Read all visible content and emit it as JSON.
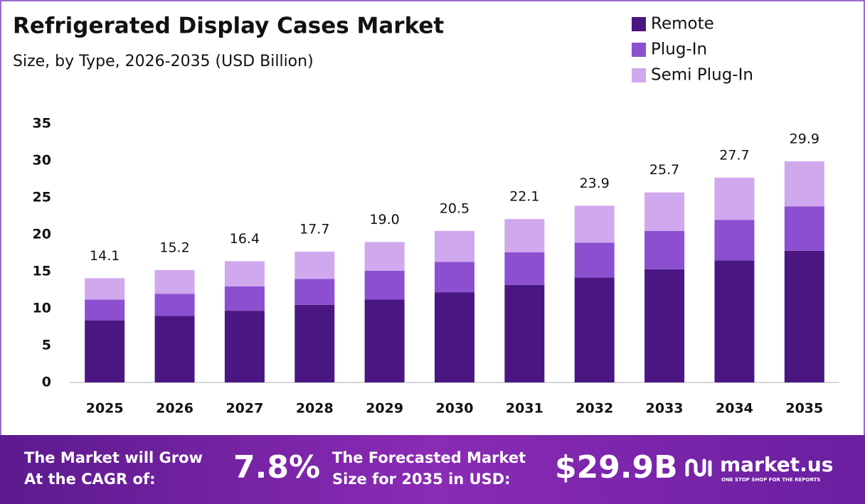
{
  "chart_data": {
    "type": "stacked-bar",
    "title": "Refrigerated Display Cases Market",
    "subtitle": "Size, by Type, 2026-2035 (USD Billion)",
    "categories": [
      "2025",
      "2026",
      "2027",
      "2028",
      "2029",
      "2030",
      "2031",
      "2032",
      "2033",
      "2034",
      "2035"
    ],
    "series": [
      {
        "name": "Remote",
        "color": "#4a1782",
        "values": [
          8.4,
          9.0,
          9.7,
          10.5,
          11.2,
          12.2,
          13.2,
          14.2,
          15.3,
          16.5,
          17.8
        ]
      },
      {
        "name": "Plug-In",
        "color": "#8b4fd0",
        "values": [
          2.8,
          3.0,
          3.3,
          3.5,
          3.9,
          4.1,
          4.4,
          4.7,
          5.2,
          5.5,
          6.0
        ]
      },
      {
        "name": "Semi Plug-In",
        "color": "#d0a8ee",
        "values": [
          2.9,
          3.2,
          3.4,
          3.7,
          3.9,
          4.2,
          4.5,
          5.0,
          5.2,
          5.7,
          6.1
        ]
      }
    ],
    "totals": [
      14.1,
      15.2,
      16.4,
      17.7,
      19.0,
      20.5,
      22.1,
      23.9,
      25.7,
      27.7,
      29.9
    ],
    "value_labels": [
      "14.1",
      "15.2",
      "16.4",
      "17.7",
      "19.0",
      "20.5",
      "22.1",
      "23.9",
      "25.7",
      "27.7",
      "29.9"
    ],
    "ylim": [
      0,
      35
    ],
    "yticks": [
      0,
      5,
      10,
      15,
      20,
      25,
      30,
      35
    ],
    "legend": "top-right"
  },
  "footer": {
    "cagr_text": [
      "The Market will Grow",
      "At the CAGR of:"
    ],
    "cagr": "7.8%",
    "forecast_text": [
      "The Forecasted Market",
      "Size for 2035 in USD:"
    ],
    "forecast": "$29.9B",
    "brand": "market.us",
    "tagline": "ONE STOP SHOP FOR THE REPORTS"
  }
}
